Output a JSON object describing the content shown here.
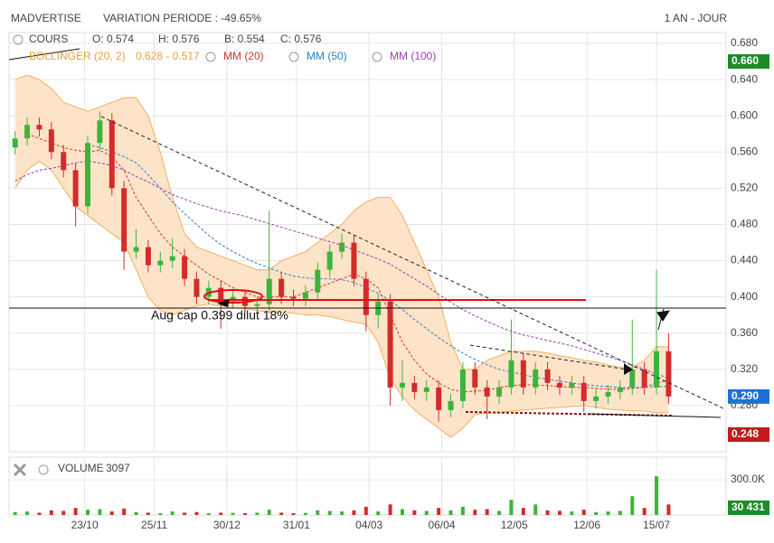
{
  "header": {
    "title": "MADVERTISE",
    "variation": "VARIATION PERIODE : -49.65%",
    "period": "1 AN - JOUR"
  },
  "chart_data": [
    {
      "type": "candlestick",
      "legend": {
        "name": "COURS",
        "quote": [
          "O: 0.574",
          "H: 0.576",
          "B: 0.554",
          "C: 0.576"
        ]
      },
      "x": [
        2,
        6,
        10,
        14,
        18,
        22,
        26,
        30,
        34,
        38,
        42,
        46,
        50,
        54,
        58,
        62,
        66,
        70,
        74,
        78,
        82,
        86,
        90,
        94,
        98,
        102,
        106,
        110,
        114,
        118,
        122,
        126,
        130,
        134,
        138,
        142,
        146,
        150,
        154,
        158,
        162,
        166,
        170,
        174,
        178,
        182,
        186,
        190,
        194,
        198,
        202,
        206,
        210,
        214,
        218
      ],
      "open": [
        0.565,
        0.575,
        0.59,
        0.585,
        0.56,
        0.54,
        0.5,
        0.57,
        0.595,
        0.52,
        0.45,
        0.455,
        0.435,
        0.44,
        0.445,
        0.42,
        0.4,
        0.41,
        0.395,
        0.4,
        0.39,
        0.392,
        0.42,
        0.4,
        0.398,
        0.405,
        0.43,
        0.45,
        0.46,
        0.42,
        0.38,
        0.395,
        0.3,
        0.305,
        0.295,
        0.3,
        0.275,
        0.285,
        0.32,
        0.3,
        0.29,
        0.3,
        0.33,
        0.3,
        0.32,
        0.305,
        0.3,
        0.305,
        0.285,
        0.29,
        0.295,
        0.3,
        0.32,
        0.3,
        0.34
      ],
      "high": [
        0.583,
        0.598,
        0.598,
        0.593,
        0.568,
        0.548,
        0.578,
        0.605,
        0.603,
        0.528,
        0.475,
        0.463,
        0.45,
        0.465,
        0.453,
        0.428,
        0.418,
        0.418,
        0.408,
        0.408,
        0.4,
        0.495,
        0.428,
        0.408,
        0.413,
        0.438,
        0.458,
        0.47,
        0.468,
        0.428,
        0.403,
        0.403,
        0.33,
        0.313,
        0.308,
        0.308,
        0.293,
        0.328,
        0.328,
        0.308,
        0.308,
        0.375,
        0.338,
        0.328,
        0.328,
        0.313,
        0.313,
        0.313,
        0.298,
        0.303,
        0.308,
        0.375,
        0.328,
        0.43,
        0.36
      ],
      "low": [
        0.557,
        0.567,
        0.577,
        0.552,
        0.532,
        0.478,
        0.492,
        0.562,
        0.512,
        0.43,
        0.442,
        0.427,
        0.427,
        0.432,
        0.412,
        0.392,
        0.392,
        0.365,
        0.387,
        0.382,
        0.382,
        0.384,
        0.392,
        0.39,
        0.39,
        0.397,
        0.422,
        0.442,
        0.412,
        0.362,
        0.365,
        0.28,
        0.285,
        0.287,
        0.285,
        0.262,
        0.267,
        0.277,
        0.292,
        0.265,
        0.282,
        0.292,
        0.292,
        0.292,
        0.297,
        0.292,
        0.292,
        0.273,
        0.277,
        0.282,
        0.287,
        0.292,
        0.292,
        0.292,
        0.282
      ],
      "close": [
        0.575,
        0.59,
        0.585,
        0.56,
        0.54,
        0.5,
        0.57,
        0.595,
        0.52,
        0.45,
        0.455,
        0.435,
        0.44,
        0.445,
        0.42,
        0.4,
        0.41,
        0.395,
        0.4,
        0.39,
        0.392,
        0.42,
        0.4,
        0.398,
        0.405,
        0.43,
        0.45,
        0.46,
        0.42,
        0.38,
        0.395,
        0.3,
        0.305,
        0.295,
        0.3,
        0.275,
        0.285,
        0.32,
        0.3,
        0.29,
        0.3,
        0.33,
        0.3,
        0.32,
        0.305,
        0.3,
        0.305,
        0.285,
        0.29,
        0.295,
        0.3,
        0.32,
        0.3,
        0.34,
        0.29
      ],
      "up_color": "#3cb43c",
      "down_color": "#d42b2b",
      "bollinger": {
        "name": "BOLLINGER (20, 2)",
        "label": "0.628 - 0.517",
        "color": "#f0b060",
        "fill": "#fde4c8",
        "upper": [
          0.64,
          0.645,
          0.64,
          0.63,
          0.615,
          0.61,
          0.605,
          0.61,
          0.615,
          0.62,
          0.62,
          0.6,
          0.56,
          0.51,
          0.47,
          0.455,
          0.45,
          0.445,
          0.44,
          0.435,
          0.43,
          0.43,
          0.44,
          0.445,
          0.45,
          0.46,
          0.47,
          0.48,
          0.495,
          0.505,
          0.51,
          0.51,
          0.49,
          0.46,
          0.43,
          0.4,
          0.35,
          0.32,
          0.32,
          0.33,
          0.335,
          0.34,
          0.34,
          0.34,
          0.338,
          0.335,
          0.333,
          0.33,
          0.328,
          0.325,
          0.322,
          0.322,
          0.33,
          0.345,
          0.345
        ],
        "lower": [
          0.52,
          0.54,
          0.55,
          0.54,
          0.52,
          0.5,
          0.49,
          0.48,
          0.47,
          0.46,
          0.43,
          0.4,
          0.385,
          0.38,
          0.385,
          0.39,
          0.392,
          0.39,
          0.388,
          0.387,
          0.385,
          0.383,
          0.383,
          0.382,
          0.38,
          0.38,
          0.378,
          0.375,
          0.372,
          0.37,
          0.35,
          0.31,
          0.29,
          0.275,
          0.265,
          0.255,
          0.245,
          0.255,
          0.27,
          0.272,
          0.272,
          0.274,
          0.275,
          0.276,
          0.277,
          0.278,
          0.279,
          0.28,
          0.278,
          0.276,
          0.275,
          0.274,
          0.274,
          0.272,
          0.272
        ]
      },
      "series": [
        {
          "name": "MM (20)",
          "color": "#d9342b",
          "values": [
            null,
            0.58,
            0.575,
            0.57,
            0.565,
            0.562,
            0.56,
            0.562,
            0.555,
            0.54,
            0.51,
            0.49,
            0.47,
            0.455,
            0.445,
            0.435,
            0.425,
            0.418,
            0.41,
            0.405,
            0.4,
            0.4,
            0.4,
            0.4,
            0.405,
            0.41,
            0.415,
            0.42,
            0.425,
            0.42,
            0.41,
            0.38,
            0.35,
            0.33,
            0.315,
            0.305,
            0.298,
            0.295,
            0.296,
            0.297,
            0.3,
            0.302,
            0.303,
            0.303,
            0.302,
            0.301,
            0.3,
            0.3,
            0.299,
            0.298,
            0.298,
            0.299,
            0.3,
            0.305,
            0.308
          ]
        },
        {
          "name": "MM (50)",
          "color": "#2f7fc1",
          "values": [
            null,
            null,
            null,
            null,
            null,
            null,
            0.568,
            0.565,
            0.56,
            0.555,
            0.548,
            0.535,
            0.52,
            0.505,
            0.492,
            0.48,
            0.468,
            0.458,
            0.45,
            0.443,
            0.437,
            0.432,
            0.427,
            0.423,
            0.421,
            0.42,
            0.42,
            0.419,
            0.416,
            0.41,
            0.404,
            0.396,
            0.386,
            0.375,
            0.365,
            0.355,
            0.346,
            0.338,
            0.331,
            0.325,
            0.32,
            0.317,
            0.314,
            0.311,
            0.309,
            0.307,
            0.305,
            0.303,
            0.302,
            0.301,
            0.3,
            0.3,
            0.3,
            0.301,
            0.301
          ]
        },
        {
          "name": "MM (100)",
          "color": "#9b3fb0",
          "values": [
            0.528,
            0.535,
            0.54,
            0.542,
            0.545,
            0.548,
            0.55,
            0.548,
            0.545,
            0.54,
            0.533,
            0.527,
            0.52,
            0.513,
            0.508,
            0.503,
            0.499,
            0.495,
            0.492,
            0.489,
            0.485,
            0.481,
            0.477,
            0.473,
            0.469,
            0.465,
            0.461,
            0.457,
            0.452,
            0.447,
            0.442,
            0.436,
            0.428,
            0.42,
            0.412,
            0.403,
            0.394,
            0.386,
            0.379,
            0.373,
            0.367,
            0.362,
            0.358,
            0.355,
            0.352,
            0.349,
            0.346,
            0.342,
            0.338,
            0.334,
            0.33,
            0.325,
            0.32,
            0.315,
            0.31
          ]
        }
      ],
      "xlim": [
        0,
        237
      ],
      "xticks": [
        {
          "value": 25,
          "label": "23/10"
        },
        {
          "value": 48,
          "label": "25/11"
        },
        {
          "value": 72,
          "label": "30/12"
        },
        {
          "value": 95,
          "label": "31/01"
        },
        {
          "value": 119,
          "label": "04/03"
        },
        {
          "value": 143,
          "label": "06/04"
        },
        {
          "value": 167,
          "label": "12/05"
        },
        {
          "value": 191,
          "label": "12/06"
        },
        {
          "value": 214,
          "label": "15/07"
        }
      ],
      "ylim": [
        0.23,
        0.69
      ],
      "yticks": [
        {
          "value": 0.28,
          "label": "0.280"
        },
        {
          "value": 0.32,
          "label": "0.320"
        },
        {
          "value": 0.36,
          "label": "0.360"
        },
        {
          "value": 0.4,
          "label": "0.400"
        },
        {
          "value": 0.44,
          "label": "0.440"
        },
        {
          "value": 0.48,
          "label": "0.480"
        },
        {
          "value": 0.52,
          "label": "0.520"
        },
        {
          "value": 0.56,
          "label": "0.560"
        },
        {
          "value": 0.6,
          "label": "0.600"
        },
        {
          "value": 0.64,
          "label": "0.640"
        },
        {
          "value": 0.68,
          "label": "0.680"
        }
      ],
      "markers": [
        {
          "value": 0.66,
          "label": "0.660",
          "color": "#1f8a2a"
        },
        {
          "value": 0.29,
          "label": "0.290",
          "color": "#1f6fd6"
        },
        {
          "value": 0.248,
          "label": "0.248",
          "color": "#c11b1b"
        }
      ],
      "annotation": "Aug cap 0.399 dilut 18%",
      "grid": true
    },
    {
      "type": "bar",
      "name": "VOLUME",
      "label": "3097",
      "values": [
        25000,
        30000,
        20000,
        40000,
        35000,
        60000,
        45000,
        50000,
        30000,
        55000,
        25000,
        20000,
        15000,
        30000,
        20000,
        25000,
        15000,
        20000,
        18000,
        15000,
        20000,
        45000,
        20000,
        15000,
        18000,
        40000,
        35000,
        30000,
        40000,
        70000,
        30000,
        90000,
        50000,
        40000,
        35000,
        60000,
        40000,
        70000,
        45000,
        50000,
        35000,
        130000,
        60000,
        90000,
        40000,
        35000,
        30000,
        45000,
        25000,
        30000,
        35000,
        160000,
        60000,
        330000,
        90000
      ],
      "ylim": [
        0,
        470000
      ],
      "yticks": [
        {
          "value": 300000,
          "label": "300.0K"
        }
      ],
      "markers": [
        {
          "value": 30431,
          "label": "30 431",
          "color": "#1f8a2a"
        }
      ]
    }
  ]
}
